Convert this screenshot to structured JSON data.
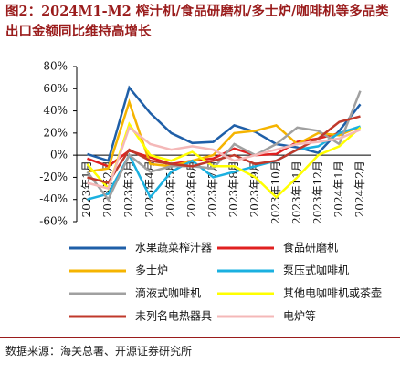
{
  "chart_data": {
    "type": "line",
    "title": "图2：2024M1-M2  榨汁机/食品研磨机/多士炉/咖啡机等多品类出口金额同比维持高增长",
    "source": "数据来源：海关总署、开源证券研究所",
    "categories": [
      "2023年1月",
      "2023年2月",
      "2023年3月",
      "2023年4月",
      "2023年5月",
      "2023年6月",
      "2023年7月",
      "2023年8月",
      "2023年9月",
      "2023年10月",
      "2023年11月",
      "2023年12月",
      "2024年1月",
      "2024年2月"
    ],
    "ylim": [
      -60,
      80
    ],
    "yticks": [
      {
        "value": -60,
        "label": "-60%"
      },
      {
        "value": -40,
        "label": "-40%"
      },
      {
        "value": -20,
        "label": "-20%"
      },
      {
        "value": 0,
        "label": "0%"
      },
      {
        "value": 20,
        "label": "20%"
      },
      {
        "value": 40,
        "label": "40%"
      },
      {
        "value": 60,
        "label": "60%"
      },
      {
        "value": 80,
        "label": "80%"
      }
    ],
    "series": [
      {
        "name": "水果蔬菜榨汁器",
        "color": "#1f5fa8",
        "values": [
          1,
          -5,
          61,
          38,
          20,
          11,
          12,
          27,
          21,
          10,
          7,
          2,
          22,
          46
        ]
      },
      {
        "name": "食品研磨机",
        "color": "#e02020",
        "values": [
          -3,
          -10,
          4,
          -2,
          -8,
          -5,
          -3,
          6,
          0,
          1,
          12,
          15,
          20,
          25
        ]
      },
      {
        "name": "多士炉",
        "color": "#f5b400",
        "values": [
          -15,
          -12,
          48,
          -8,
          -10,
          -5,
          0,
          20,
          22,
          27,
          10,
          20,
          18,
          26
        ]
      },
      {
        "name": "泵压式咖啡机",
        "color": "#1ab0e0",
        "values": [
          -40,
          -35,
          0,
          -38,
          -15,
          -5,
          -20,
          -15,
          -10,
          -5,
          5,
          8,
          20,
          26
        ]
      },
      {
        "name": "滴液式咖啡机",
        "color": "#a0a0a0",
        "values": [
          -15,
          -40,
          0,
          -15,
          -10,
          -10,
          -12,
          10,
          0,
          10,
          25,
          22,
          10,
          58
        ]
      },
      {
        "name": "其他电咖啡机或茶壶",
        "color": "#ffff00",
        "values": [
          -8,
          -30,
          28,
          0,
          -5,
          3,
          -10,
          -10,
          -20,
          -38,
          -20,
          0,
          8,
          25
        ]
      },
      {
        "name": "未列名电热器具",
        "color": "#c0392b",
        "values": [
          -20,
          -25,
          5,
          -5,
          -8,
          -10,
          -5,
          0,
          -8,
          -5,
          5,
          15,
          30,
          35
        ]
      },
      {
        "name": "电炉等",
        "color": "#f4b8b8",
        "values": [
          -25,
          -30,
          25,
          10,
          5,
          8,
          5,
          -5,
          0,
          5,
          10,
          12,
          15,
          23
        ]
      }
    ]
  }
}
